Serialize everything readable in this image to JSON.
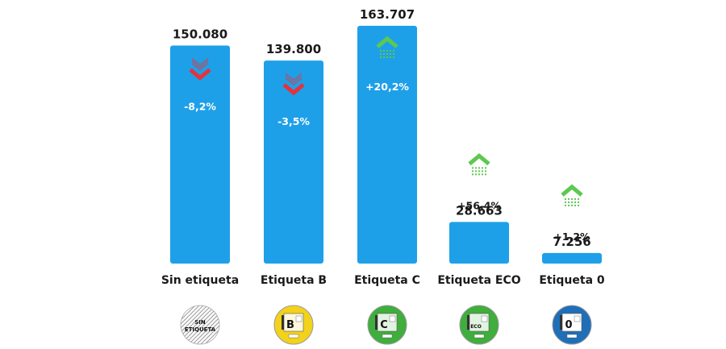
{
  "chart_data": {
    "type": "bar",
    "categories": [
      "Sin etiqueta",
      "Etiqueta B",
      "Etiqueta C",
      "Etiqueta ECO",
      "Etiqueta 0"
    ],
    "values": [
      150080,
      139800,
      163707,
      28663,
      7256
    ],
    "value_labels": [
      "150.080",
      "139.800",
      "163.707",
      "28.663",
      "7.256"
    ],
    "changes": [
      "-8,2%",
      "-3,5%",
      "+20,2%",
      "+56,4%",
      "+1,2%"
    ],
    "change_direction": [
      "down",
      "down",
      "up",
      "up",
      "up"
    ],
    "ylim": [
      0,
      170000
    ],
    "grid": false,
    "badges": [
      {
        "text": "SIN ETIQUETA",
        "icon": "no-label-sticker-icon"
      },
      {
        "text": "B",
        "icon": "label-b-sticker-icon"
      },
      {
        "text": "C",
        "icon": "label-c-sticker-icon"
      },
      {
        "text": "ECO",
        "icon": "label-eco-sticker-icon"
      },
      {
        "text": "0",
        "icon": "label-zero-sticker-icon"
      }
    ]
  },
  "colors": {
    "bar": "#1ea0e8",
    "down_arrow": "#e5323c",
    "up_arrow": "#5cc950",
    "badge_b": "#f2d21a",
    "badge_c": "#3fae3c",
    "badge_eco": "#3fae3c",
    "badge_zero": "#1f6fb8"
  }
}
